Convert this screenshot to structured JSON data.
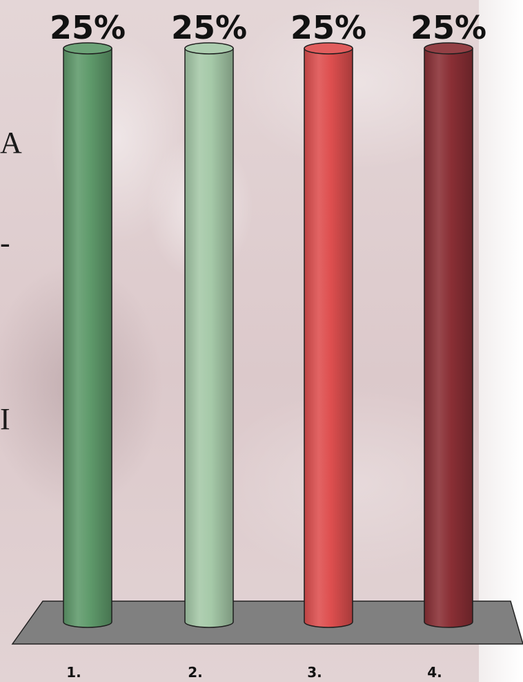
{
  "side_text": [
    "A",
    "-",
    "I"
  ],
  "chart_data": {
    "type": "bar",
    "categories": [
      "1.",
      "2.",
      "3.",
      "4."
    ],
    "values": [
      25,
      25,
      25,
      25
    ],
    "value_labels": [
      "25%",
      "25%",
      "25%",
      "25%"
    ],
    "ylim": [
      0,
      25
    ],
    "colors": [
      "#5f9a6b",
      "#a5c9a8",
      "#de4f4f",
      "#8a2f35"
    ],
    "floor_color": "#808080",
    "grid": false,
    "legend": "none"
  }
}
